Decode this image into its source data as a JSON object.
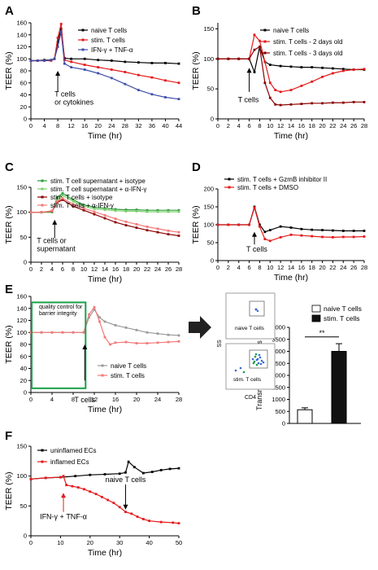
{
  "colors": {
    "black": "#000000",
    "red": "#e41a1c",
    "darkred": "#8b0000",
    "blue": "#3f4fa8",
    "green": "#2e9e3a",
    "lightgreen": "#7ed06f",
    "lightred": "#f47a7a",
    "gray": "#9a9a9a",
    "box": "#1aa04a"
  },
  "chart_data": [
    {
      "panel": "A",
      "type": "line",
      "xlabel": "Time (hr)",
      "ylabel": "TEER (%)",
      "xlim": [
        0,
        44
      ],
      "ylim": [
        0,
        160
      ],
      "xticks": [
        0,
        4,
        8,
        12,
        16,
        20,
        24,
        28,
        32,
        36,
        40,
        44
      ],
      "yticks": [
        0,
        20,
        40,
        60,
        80,
        100,
        120,
        140,
        160
      ],
      "annotation": "T cells\nor cytokines",
      "series": [
        {
          "name": "naive T cells",
          "color": "black",
          "x": [
            0,
            2,
            4,
            6,
            7,
            8,
            9,
            10,
            12,
            16,
            20,
            24,
            28,
            32,
            36,
            40,
            44
          ],
          "y": [
            97,
            97,
            98,
            98,
            100,
            128,
            150,
            101,
            100,
            100,
            98,
            97,
            95,
            94,
            93,
            93,
            92
          ]
        },
        {
          "name": "stim. T cells",
          "color": "red",
          "x": [
            0,
            2,
            4,
            6,
            7,
            8,
            9,
            10,
            12,
            16,
            20,
            24,
            28,
            32,
            36,
            40,
            44
          ],
          "y": [
            97,
            97,
            97,
            97,
            100,
            135,
            158,
            98,
            95,
            90,
            86,
            82,
            78,
            73,
            69,
            64,
            60
          ]
        },
        {
          "name": "IFN-γ + TNF-α",
          "color": "blue",
          "x": [
            0,
            2,
            4,
            6,
            7,
            8,
            9,
            10,
            12,
            16,
            20,
            24,
            28,
            32,
            36,
            40,
            44
          ],
          "y": [
            97,
            97,
            97,
            98,
            100,
            120,
            145,
            92,
            86,
            82,
            76,
            68,
            58,
            48,
            41,
            36,
            33
          ]
        }
      ]
    },
    {
      "panel": "B",
      "type": "line",
      "xlabel": "Time (hr)",
      "ylabel": "TEER (%)",
      "xlim": [
        0,
        28
      ],
      "ylim": [
        0,
        160
      ],
      "xticks": [
        0,
        2,
        4,
        6,
        8,
        10,
        12,
        14,
        16,
        18,
        20,
        22,
        24,
        26,
        28
      ],
      "yticks": [
        0,
        50,
        100,
        150
      ],
      "annotation": "T cells",
      "series": [
        {
          "name": "naive T cells",
          "color": "black",
          "x": [
            0,
            2,
            4,
            6,
            7,
            8,
            9,
            10,
            12,
            14,
            16,
            18,
            20,
            22,
            24,
            26,
            28
          ],
          "y": [
            100,
            100,
            100,
            100,
            78,
            120,
            95,
            90,
            88,
            87,
            86,
            86,
            85,
            84,
            83,
            82,
            82
          ]
        },
        {
          "name": "stim. T cells - 2 days old",
          "color": "red",
          "x": [
            0,
            2,
            4,
            6,
            7,
            8,
            9,
            10,
            11,
            12,
            14,
            16,
            18,
            20,
            22,
            24,
            26,
            28
          ],
          "y": [
            100,
            100,
            100,
            100,
            140,
            130,
            95,
            60,
            48,
            45,
            48,
            55,
            62,
            70,
            76,
            80,
            82,
            83
          ]
        },
        {
          "name": "stim. T cells - 3 days old",
          "color": "darkred",
          "x": [
            0,
            2,
            4,
            6,
            7,
            8,
            9,
            10,
            11,
            12,
            14,
            16,
            18,
            20,
            22,
            24,
            26,
            28
          ],
          "y": [
            100,
            100,
            100,
            100,
            115,
            120,
            60,
            35,
            24,
            23,
            24,
            25,
            26,
            26,
            27,
            27,
            28,
            28
          ]
        }
      ]
    },
    {
      "panel": "C",
      "type": "line",
      "xlabel": "Time (hr)",
      "ylabel": "TEER (%)",
      "xlim": [
        0,
        28
      ],
      "ylim": [
        0,
        150
      ],
      "xticks": [
        0,
        2,
        4,
        6,
        8,
        10,
        12,
        14,
        16,
        18,
        20,
        22,
        24,
        26,
        28
      ],
      "yticks": [
        0,
        50,
        100,
        150
      ],
      "annotation": "T cells or\nsupernatant",
      "series": [
        {
          "name": "stim. T cell supernatant + isotype",
          "color": "green",
          "x": [
            0,
            2,
            4,
            5,
            6,
            8,
            10,
            12,
            14,
            16,
            18,
            20,
            22,
            24,
            26,
            28
          ],
          "y": [
            100,
            100,
            100,
            130,
            138,
            125,
            115,
            110,
            108,
            106,
            105,
            105,
            104,
            104,
            104,
            104
          ]
        },
        {
          "name": "stim. T cell supernatant + α-IFN-γ",
          "color": "lightgreen",
          "x": [
            0,
            2,
            4,
            5,
            6,
            8,
            10,
            12,
            14,
            16,
            18,
            20,
            22,
            24,
            26,
            28
          ],
          "y": [
            100,
            100,
            100,
            125,
            134,
            122,
            112,
            107,
            105,
            103,
            102,
            102,
            101,
            101,
            101,
            101
          ]
        },
        {
          "name": "stim. T cells + isotype",
          "color": "darkred",
          "x": [
            0,
            2,
            4,
            5,
            6,
            8,
            10,
            12,
            14,
            16,
            18,
            20,
            22,
            24,
            26,
            28
          ],
          "y": [
            100,
            100,
            102,
            120,
            125,
            112,
            104,
            96,
            88,
            80,
            74,
            69,
            64,
            60,
            56,
            53
          ]
        },
        {
          "name": "stim. T cells + α-IFN-γ",
          "color": "lightred",
          "x": [
            0,
            2,
            4,
            5,
            6,
            8,
            10,
            12,
            14,
            16,
            18,
            20,
            22,
            24,
            26,
            28
          ],
          "y": [
            100,
            100,
            103,
            122,
            128,
            116,
            108,
            101,
            94,
            87,
            81,
            76,
            71,
            67,
            63,
            60
          ]
        }
      ]
    },
    {
      "panel": "D",
      "type": "line",
      "xlabel": "Time (hr)",
      "ylabel": "TEER (%)",
      "xlim": [
        0,
        28
      ],
      "ylim": [
        0,
        200
      ],
      "xticks": [
        0,
        2,
        4,
        6,
        8,
        10,
        12,
        14,
        16,
        18,
        20,
        22,
        24,
        26,
        28
      ],
      "yticks": [
        0,
        50,
        100,
        150,
        200
      ],
      "annotation": "T cells",
      "series": [
        {
          "name": "stim. T cells + GzmB inhibitor II",
          "color": "black",
          "x": [
            0,
            2,
            4,
            6,
            7,
            8,
            9,
            10,
            12,
            14,
            16,
            18,
            20,
            22,
            24,
            26,
            28
          ],
          "y": [
            100,
            100,
            100,
            100,
            150,
            100,
            80,
            85,
            95,
            92,
            88,
            86,
            85,
            84,
            83,
            83,
            83
          ]
        },
        {
          "name": "stim. T cells + DMSO",
          "color": "red",
          "x": [
            0,
            2,
            4,
            6,
            7,
            8,
            9,
            10,
            12,
            14,
            16,
            18,
            20,
            22,
            24,
            26,
            28
          ],
          "y": [
            100,
            100,
            100,
            100,
            148,
            95,
            60,
            55,
            65,
            72,
            70,
            68,
            66,
            65,
            66,
            66,
            67
          ]
        }
      ]
    },
    {
      "panel": "E",
      "type": "line",
      "xlabel": "Time (hr)",
      "ylabel": "TEER (%)",
      "xlim": [
        0,
        28
      ],
      "ylim": [
        0,
        160
      ],
      "xticks": [
        0,
        4,
        8,
        12,
        16,
        20,
        24,
        28
      ],
      "yticks": [
        0,
        20,
        40,
        60,
        80,
        100,
        120,
        140,
        160
      ],
      "annotation": "T cells",
      "box_label": "quality control for\nbarrier integrity",
      "series": [
        {
          "name": "naive T cells",
          "color": "gray",
          "x": [
            0,
            2,
            4,
            6,
            8,
            10,
            11,
            12,
            13,
            14,
            16,
            18,
            20,
            22,
            24,
            26,
            28
          ],
          "y": [
            100,
            100,
            100,
            100,
            100,
            100,
            125,
            138,
            125,
            118,
            112,
            108,
            104,
            100,
            98,
            96,
            95
          ]
        },
        {
          "name": "stim. T cells",
          "color": "lightred",
          "x": [
            0,
            2,
            4,
            6,
            8,
            10,
            11,
            12,
            13,
            14,
            15,
            16,
            18,
            20,
            22,
            24,
            26,
            28
          ],
          "y": [
            100,
            100,
            100,
            100,
            100,
            100,
            130,
            142,
            118,
            92,
            80,
            83,
            84,
            82,
            82,
            83,
            84,
            85
          ]
        }
      ]
    },
    {
      "panel": "E-bar",
      "type": "bar",
      "ylabel": "Transmigrated T cells",
      "ylim": [
        0,
        4000
      ],
      "yticks": [
        0,
        500,
        1000,
        1500,
        2000,
        2500,
        3000,
        3500,
        4000
      ],
      "categories": [
        "naive T cells",
        "stim. T cells"
      ],
      "values": [
        570,
        3000
      ],
      "errors": [
        80,
        320
      ],
      "significance": "**"
    },
    {
      "panel": "F",
      "type": "line",
      "xlabel": "Time (hr)",
      "ylabel": "TEER (%)",
      "xlim": [
        0,
        50
      ],
      "ylim": [
        0,
        150
      ],
      "xticks": [
        0,
        10,
        20,
        30,
        40,
        50
      ],
      "yticks": [
        0,
        50,
        100,
        150
      ],
      "annotations": [
        "naive T cells",
        "IFN-γ + TNF-α"
      ],
      "series": [
        {
          "name": "uninflamed ECs",
          "color": "black",
          "x": [
            0,
            5,
            10,
            15,
            20,
            25,
            30,
            32,
            33,
            35,
            38,
            41,
            44,
            47,
            50
          ],
          "y": [
            95,
            97,
            98,
            100,
            102,
            103,
            104,
            106,
            124,
            115,
            105,
            107,
            110,
            112,
            113
          ]
        },
        {
          "name": "inflamed ECs",
          "color": "red",
          "x": [
            0,
            5,
            10,
            11,
            12,
            14,
            16,
            18,
            20,
            22,
            24,
            26,
            28,
            30,
            32,
            34,
            36,
            38,
            40,
            44,
            48,
            50
          ],
          "y": [
            95,
            97,
            98,
            100,
            85,
            83,
            81,
            78,
            74,
            70,
            65,
            60,
            55,
            48,
            40,
            37,
            32,
            28,
            25,
            23,
            22,
            21
          ]
        }
      ]
    }
  ],
  "flow": {
    "plot1_label": "naive T cells",
    "plot2_label": "stim. T cells",
    "yaxis": "SS",
    "xaxis": "CD4"
  },
  "panel_letters": [
    "A",
    "B",
    "C",
    "D",
    "E",
    "F"
  ]
}
